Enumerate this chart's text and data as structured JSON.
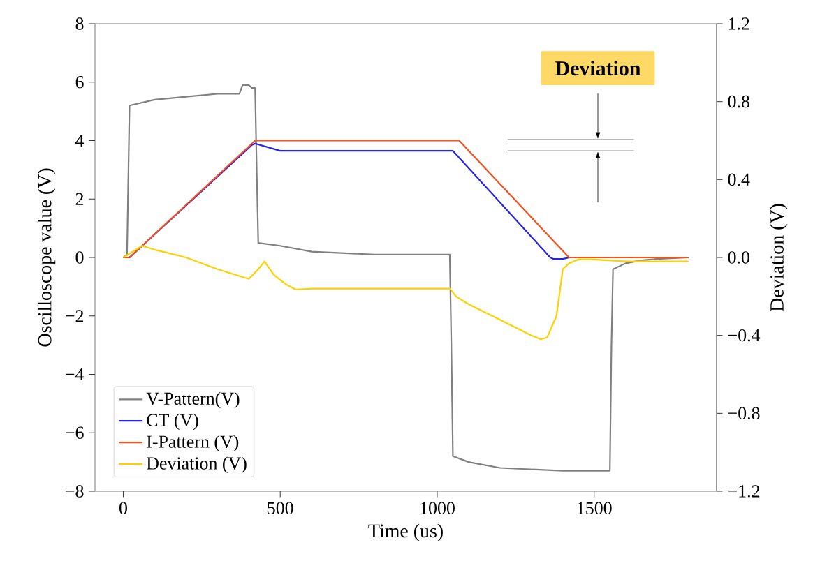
{
  "chart_data": {
    "type": "line",
    "xlabel": "Time (us)",
    "ylabel": "Oscilloscope value (V)",
    "y2label": "Deviation (V)",
    "xlim": [
      -90,
      1890
    ],
    "xticks": [
      0,
      500,
      1000,
      1500
    ],
    "ylim": [
      -8,
      8
    ],
    "yticks": [
      {
        "value": -8,
        "label": "−8"
      },
      {
        "value": -6,
        "label": "−6"
      },
      {
        "value": -4,
        "label": "−4"
      },
      {
        "value": -2,
        "label": "−2"
      },
      0,
      2,
      4,
      6,
      8
    ],
    "y2lim": [
      -1.2,
      1.2
    ],
    "y2ticks": [
      {
        "value": -1.2,
        "label": "−1.2"
      },
      {
        "value": -0.8,
        "label": "−0.8"
      },
      {
        "value": -0.4,
        "label": "−0.4"
      },
      {
        "value": 0,
        "label": "0.0"
      },
      0.4,
      0.8,
      1.2
    ],
    "legend": "bottom left",
    "grid": false,
    "marker": "none",
    "line_style": "solid",
    "annotations": [
      "Deviation"
    ],
    "series": [
      {
        "name": "V-Pattern(V)",
        "color": "#808080",
        "x": [
          0,
          12,
          20,
          100,
          200,
          300,
          370,
          380,
          400,
          410,
          420,
          425,
          430,
          500,
          600,
          800,
          1000,
          1040,
          1045,
          1050,
          1100,
          1200,
          1400,
          1550,
          1555,
          1560,
          1600,
          1650,
          1700,
          1800
        ],
        "values": [
          0.0,
          0.1,
          5.2,
          5.4,
          5.5,
          5.6,
          5.6,
          5.9,
          5.9,
          5.8,
          5.8,
          3.0,
          0.5,
          0.4,
          0.2,
          0.1,
          0.1,
          0.1,
          -3.0,
          -6.8,
          -7.0,
          -7.2,
          -7.3,
          -7.3,
          -3.0,
          -0.4,
          -0.2,
          -0.1,
          -0.05,
          0.0
        ]
      },
      {
        "name": "CT (V)",
        "color": "#2424e6",
        "x": [
          0,
          20,
          410,
          420,
          500,
          600,
          800,
          1050,
          1360,
          1370,
          1400,
          1420,
          1800
        ],
        "values": [
          0.0,
          0.0,
          3.85,
          3.9,
          3.65,
          3.65,
          3.65,
          3.65,
          0.0,
          -0.05,
          -0.05,
          0.0,
          0.0
        ]
      },
      {
        "name": "I-Pattern (V)",
        "color": "#f4511e",
        "x": [
          0,
          20,
          420,
          600,
          800,
          1070,
          1420,
          1800
        ],
        "values": [
          0.0,
          0.0,
          4.0,
          4.0,
          4.0,
          4.0,
          0.0,
          0.0
        ]
      },
      {
        "name": "Deviation (V)",
        "color": "#ffd000",
        "axis": "y2",
        "x": [
          0,
          20,
          60,
          100,
          200,
          300,
          400,
          430,
          450,
          480,
          520,
          550,
          600,
          800,
          1000,
          1040,
          1060,
          1100,
          1200,
          1300,
          1330,
          1350,
          1380,
          1400,
          1420,
          1450,
          1500,
          1600,
          1800
        ],
        "values": [
          0.0,
          0.02,
          0.06,
          0.04,
          0.0,
          -0.06,
          -0.11,
          -0.06,
          -0.02,
          -0.09,
          -0.14,
          -0.165,
          -0.16,
          -0.16,
          -0.16,
          -0.16,
          -0.2,
          -0.24,
          -0.32,
          -0.4,
          -0.42,
          -0.41,
          -0.3,
          -0.06,
          -0.03,
          -0.01,
          -0.01,
          -0.02,
          -0.02
        ]
      }
    ]
  }
}
